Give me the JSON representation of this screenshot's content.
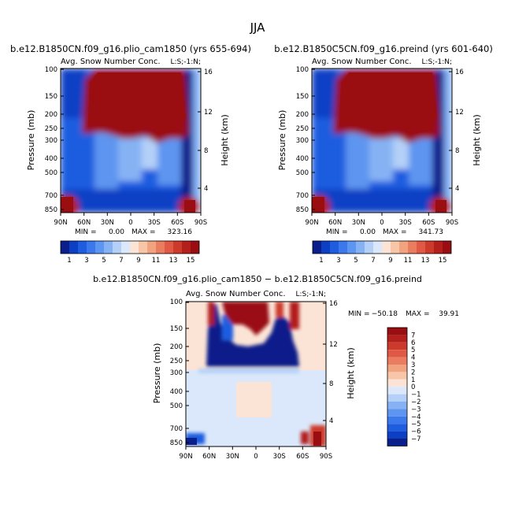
{
  "figure": {
    "season": "JJA",
    "colors": {
      "blue": [
        "#0a1f8a",
        "#0d3fc4",
        "#1f5de0",
        "#3a78ec",
        "#5d95f0",
        "#86b2f4",
        "#b4d0f8",
        "#dbe8fb"
      ],
      "red": [
        "#fbe4d6",
        "#f7c6a8",
        "#f1a27f",
        "#ea7d5f",
        "#e05846",
        "#cc3a2c",
        "#b21f1d",
        "#9a0e12"
      ]
    }
  },
  "chart_data": [
    {
      "type": "heatmap",
      "id": "left",
      "title": "b.e12.B1850CN.f09_g16.plio_cam1850 (yrs 655-694)",
      "subtitle": "Avg. Snow Number Conc.",
      "corner_label": "L:S;-1:N;",
      "xlabel": "",
      "ylabel": "Pressure (mb)",
      "ylabel_right": "Height (km)",
      "x_ticks": [
        "90N",
        "60N",
        "30N",
        "0",
        "30S",
        "60S",
        "90S"
      ],
      "y_ticks": [
        "100",
        "150",
        "200",
        "250",
        "300",
        "400",
        "500",
        "700",
        "850"
      ],
      "y_right_ticks": [
        "16",
        "12",
        "8",
        "4"
      ],
      "min_label": "MIN =",
      "min_value": "0.00",
      "max_label": "MAX =",
      "max_value": "323.16",
      "colorbar_labels": [
        "1",
        "3",
        "5",
        "7",
        "9",
        "11",
        "13",
        "15"
      ]
    },
    {
      "type": "heatmap",
      "id": "right",
      "title": "b.e12.B1850C5CN.f09_g16.preind (yrs 601-640)",
      "subtitle": "Avg. Snow Number Conc.",
      "corner_label": "L:S;-1:N;",
      "xlabel": "",
      "ylabel": "Pressure (mb)",
      "ylabel_right": "Height (km)",
      "x_ticks": [
        "90N",
        "60N",
        "30N",
        "0",
        "30S",
        "60S",
        "90S"
      ],
      "y_ticks": [
        "100",
        "150",
        "200",
        "250",
        "300",
        "400",
        "500",
        "700",
        "850"
      ],
      "y_right_ticks": [
        "16",
        "12",
        "8",
        "4"
      ],
      "min_label": "MIN =",
      "min_value": "0.00",
      "max_label": "MAX =",
      "max_value": "341.73",
      "colorbar_labels": [
        "1",
        "3",
        "5",
        "7",
        "9",
        "11",
        "13",
        "15"
      ]
    },
    {
      "type": "heatmap",
      "id": "diff",
      "title": "b.e12.B1850CN.f09_g16.plio_cam1850 − b.e12.B1850C5CN.f09_g16.preind",
      "subtitle": "Avg. Snow Number Conc.",
      "corner_label": "L:S;-1:N;",
      "xlabel": "",
      "ylabel": "Pressure (mb)",
      "ylabel_right": "Height (km)",
      "x_ticks": [
        "90N",
        "60N",
        "30N",
        "0",
        "30S",
        "60S",
        "90S"
      ],
      "y_ticks": [
        "100",
        "150",
        "200",
        "250",
        "300",
        "400",
        "500",
        "700",
        "850"
      ],
      "y_right_ticks": [
        "16",
        "12",
        "8",
        "4"
      ],
      "min_label": "MIN =",
      "min_value": "−50.18",
      "max_label": "MAX =",
      "max_value": "39.91",
      "colorbar_labels": [
        "7",
        "6",
        "5",
        "4",
        "3",
        "2",
        "1",
        "0",
        "−1",
        "−2",
        "−3",
        "−4",
        "−5",
        "−6",
        "−7"
      ]
    }
  ]
}
